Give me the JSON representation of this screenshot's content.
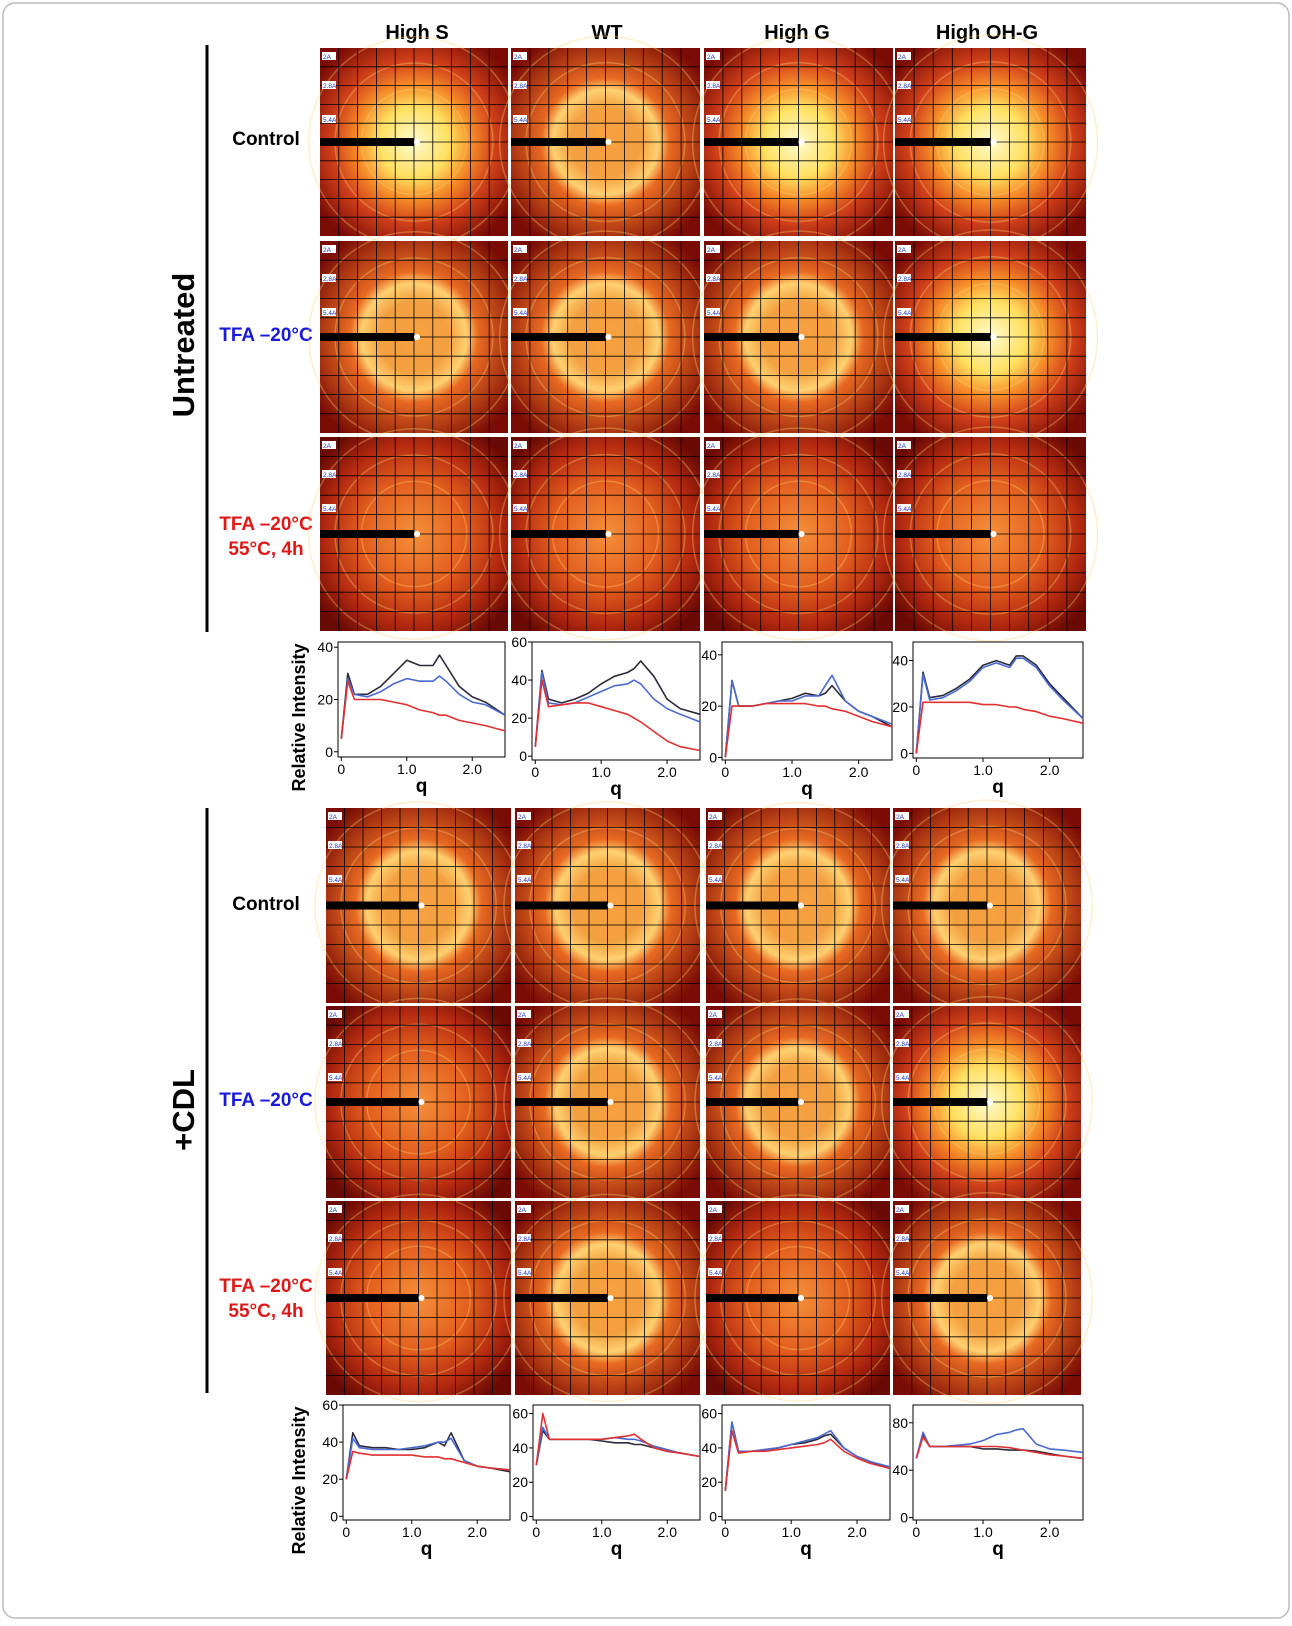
{
  "column_headers": [
    "High S",
    "WT",
    "High G",
    "High OH-G"
  ],
  "image_labels": [
    "2A",
    "2.8A",
    "5.4A"
  ],
  "groups": [
    {
      "label": "Untreated",
      "rows": [
        {
          "lines": [
            "Control"
          ],
          "color": "#000000"
        },
        {
          "lines": [
            "TFA –20°C"
          ],
          "color": "#1a1adc"
        },
        {
          "lines": [
            "TFA –20°C",
            "55°C, 4h"
          ],
          "color": "#e01818"
        }
      ]
    },
    {
      "label": "+CDL",
      "rows": [
        {
          "lines": [
            "Control"
          ],
          "color": "#000000"
        },
        {
          "lines": [
            "TFA –20°C"
          ],
          "color": "#1a1adc"
        },
        {
          "lines": [
            "TFA –20°C",
            "55°C, 4h"
          ],
          "color": "#e01818"
        }
      ]
    }
  ],
  "chart_data": [
    {
      "type": "line",
      "x_label": "q",
      "y_label": "Relative Intensity",
      "x": [
        0,
        0.1,
        0.2,
        0.4,
        0.6,
        0.8,
        1.0,
        1.2,
        1.4,
        1.5,
        1.6,
        1.8,
        2.0,
        2.2,
        2.5
      ],
      "xlim": [
        -0.05,
        2.5
      ],
      "xticks": [
        0,
        {
          "value": 1,
          "label": "1.0"
        },
        {
          "value": 2,
          "label": "2.0"
        }
      ],
      "ylim": [
        -2,
        42
      ],
      "yticks": [
        0,
        20,
        40
      ],
      "series": [
        {
          "color": "#2a2a3a",
          "values": [
            5,
            30,
            22,
            22,
            25,
            30,
            35,
            33,
            33,
            37,
            33,
            25,
            21,
            19,
            14
          ]
        },
        {
          "color": "#4a6ad0",
          "values": [
            5,
            28,
            22,
            21,
            23,
            26,
            28,
            27,
            27,
            29,
            27,
            22,
            19,
            18,
            14
          ]
        },
        {
          "color": "#e03030",
          "values": [
            5,
            27,
            20,
            20,
            20,
            19,
            18,
            16,
            15,
            14,
            14,
            12,
            11,
            10,
            8
          ]
        }
      ]
    },
    {
      "type": "line",
      "x_label": "q",
      "x": [
        0,
        0.1,
        0.2,
        0.4,
        0.6,
        0.8,
        1.0,
        1.2,
        1.4,
        1.5,
        1.6,
        1.8,
        2.0,
        2.2,
        2.5
      ],
      "xlim": [
        -0.05,
        2.5
      ],
      "xticks": [
        0,
        {
          "value": 1,
          "label": "1.0"
        },
        {
          "value": 2,
          "label": "2.0"
        }
      ],
      "ylim": [
        -2,
        60
      ],
      "yticks": [
        0,
        20,
        40,
        60
      ],
      "series": [
        {
          "color": "#2a2a3a",
          "values": [
            5,
            45,
            30,
            28,
            30,
            33,
            38,
            42,
            44,
            46,
            50,
            42,
            30,
            25,
            22
          ]
        },
        {
          "color": "#4a6ad0",
          "values": [
            5,
            44,
            28,
            27,
            28,
            31,
            34,
            37,
            38,
            40,
            38,
            30,
            25,
            22,
            18
          ]
        },
        {
          "color": "#e03030",
          "values": [
            5,
            40,
            26,
            27,
            28,
            28,
            26,
            24,
            22,
            20,
            18,
            13,
            8,
            5,
            3
          ]
        }
      ]
    },
    {
      "type": "line",
      "x_label": "q",
      "x": [
        0,
        0.1,
        0.2,
        0.4,
        0.6,
        0.8,
        1.0,
        1.2,
        1.4,
        1.5,
        1.6,
        1.8,
        2.0,
        2.2,
        2.5
      ],
      "xlim": [
        -0.05,
        2.5
      ],
      "xticks": [
        0,
        {
          "value": 1,
          "label": "1.0"
        },
        {
          "value": 2,
          "label": "2.0"
        }
      ],
      "ylim": [
        -1,
        45
      ],
      "yticks": [
        0,
        20,
        40
      ],
      "series": [
        {
          "color": "#2a2a3a",
          "values": [
            0,
            30,
            20,
            20,
            21,
            22,
            23,
            25,
            24,
            25,
            28,
            22,
            18,
            16,
            12
          ]
        },
        {
          "color": "#4a6ad0",
          "values": [
            0,
            30,
            20,
            20,
            21,
            22,
            22,
            24,
            24,
            28,
            32,
            22,
            18,
            16,
            13
          ]
        },
        {
          "color": "#e03030",
          "values": [
            0,
            20,
            20,
            20,
            21,
            21,
            21,
            21,
            20,
            20,
            19,
            18,
            16,
            14,
            12
          ]
        }
      ]
    },
    {
      "type": "line",
      "x_label": "q",
      "x": [
        0,
        0.1,
        0.2,
        0.4,
        0.6,
        0.8,
        1.0,
        1.2,
        1.4,
        1.5,
        1.6,
        1.8,
        2.0,
        2.2,
        2.5
      ],
      "xlim": [
        -0.05,
        2.5
      ],
      "xticks": [
        0,
        {
          "value": 1,
          "label": "1.0"
        },
        {
          "value": 2,
          "label": "2.0"
        }
      ],
      "ylim": [
        -2,
        48
      ],
      "yticks": [
        0,
        20,
        40
      ],
      "series": [
        {
          "color": "#2a2a3a",
          "values": [
            0,
            35,
            24,
            25,
            28,
            32,
            38,
            40,
            38,
            42,
            42,
            38,
            30,
            24,
            15
          ]
        },
        {
          "color": "#4a6ad0",
          "values": [
            0,
            34,
            23,
            24,
            27,
            31,
            37,
            39,
            37,
            41,
            41,
            37,
            29,
            23,
            15
          ]
        },
        {
          "color": "#e03030",
          "values": [
            0,
            22,
            22,
            22,
            22,
            22,
            21,
            21,
            20,
            20,
            19,
            18,
            16,
            15,
            13
          ]
        }
      ]
    },
    {
      "type": "line",
      "x_label": "q",
      "y_label": "Relative Intensity",
      "x": [
        0,
        0.1,
        0.2,
        0.4,
        0.6,
        0.8,
        1.0,
        1.2,
        1.4,
        1.5,
        1.6,
        1.8,
        2.0,
        2.2,
        2.5
      ],
      "xlim": [
        -0.05,
        2.5
      ],
      "xticks": [
        0,
        {
          "value": 1,
          "label": "1.0"
        },
        {
          "value": 2,
          "label": "2.0"
        }
      ],
      "ylim": [
        -2,
        60
      ],
      "yticks": [
        0,
        20,
        40,
        60
      ],
      "series": [
        {
          "color": "#2a2a3a",
          "values": [
            20,
            45,
            38,
            37,
            37,
            36,
            36,
            37,
            40,
            38,
            45,
            30,
            27,
            26,
            24
          ]
        },
        {
          "color": "#4a6ad0",
          "values": [
            20,
            42,
            37,
            36,
            36,
            36,
            37,
            38,
            40,
            40,
            42,
            30,
            27,
            26,
            25
          ]
        },
        {
          "color": "#e03030",
          "values": [
            20,
            35,
            34,
            33,
            33,
            33,
            33,
            32,
            32,
            31,
            31,
            29,
            27,
            26,
            25
          ]
        }
      ]
    },
    {
      "type": "line",
      "x_label": "q",
      "x": [
        0,
        0.1,
        0.2,
        0.4,
        0.6,
        0.8,
        1.0,
        1.2,
        1.4,
        1.5,
        1.6,
        1.8,
        2.0,
        2.2,
        2.5
      ],
      "xlim": [
        -0.05,
        2.5
      ],
      "xticks": [
        0,
        {
          "value": 1,
          "label": "1.0"
        },
        {
          "value": 2,
          "label": "2.0"
        }
      ],
      "ylim": [
        -2,
        65
      ],
      "yticks": [
        0,
        20,
        40,
        60
      ],
      "series": [
        {
          "color": "#2a2a3a",
          "values": [
            30,
            50,
            45,
            45,
            45,
            45,
            44,
            43,
            43,
            42,
            42,
            40,
            38,
            37,
            35
          ]
        },
        {
          "color": "#4a6ad0",
          "values": [
            30,
            52,
            45,
            45,
            45,
            45,
            45,
            46,
            45,
            45,
            44,
            41,
            39,
            37,
            35
          ]
        },
        {
          "color": "#e03030",
          "values": [
            30,
            60,
            45,
            45,
            45,
            45,
            45,
            46,
            47,
            48,
            45,
            40,
            38,
            37,
            35
          ]
        }
      ]
    },
    {
      "type": "line",
      "x_label": "q",
      "x": [
        0,
        0.1,
        0.2,
        0.4,
        0.6,
        0.8,
        1.0,
        1.2,
        1.4,
        1.5,
        1.6,
        1.8,
        2.0,
        2.2,
        2.5
      ],
      "xlim": [
        -0.05,
        2.5
      ],
      "xticks": [
        0,
        {
          "value": 1,
          "label": "1.0"
        },
        {
          "value": 2,
          "label": "2.0"
        }
      ],
      "ylim": [
        -2,
        65
      ],
      "yticks": [
        0,
        20,
        40,
        60
      ],
      "series": [
        {
          "color": "#2a2a3a",
          "values": [
            15,
            55,
            38,
            38,
            39,
            40,
            42,
            43,
            45,
            47,
            48,
            40,
            35,
            32,
            28
          ]
        },
        {
          "color": "#4a6ad0",
          "values": [
            15,
            55,
            38,
            38,
            39,
            40,
            42,
            44,
            46,
            48,
            50,
            40,
            35,
            32,
            29
          ]
        },
        {
          "color": "#e03030",
          "values": [
            15,
            50,
            37,
            38,
            38,
            39,
            40,
            41,
            42,
            43,
            45,
            38,
            34,
            31,
            28
          ]
        }
      ]
    },
    {
      "type": "line",
      "x_label": "q",
      "x": [
        0,
        0.1,
        0.2,
        0.4,
        0.6,
        0.8,
        1.0,
        1.2,
        1.4,
        1.5,
        1.6,
        1.8,
        2.0,
        2.2,
        2.5
      ],
      "xlim": [
        -0.05,
        2.5
      ],
      "xticks": [
        0,
        {
          "value": 1,
          "label": "1.0"
        },
        {
          "value": 2,
          "label": "2.0"
        }
      ],
      "ylim": [
        -2,
        95
      ],
      "yticks": [
        0,
        40,
        80
      ],
      "series": [
        {
          "color": "#2a2a3a",
          "values": [
            50,
            70,
            60,
            60,
            60,
            60,
            58,
            58,
            57,
            57,
            57,
            56,
            54,
            52,
            50
          ]
        },
        {
          "color": "#4a6ad0",
          "values": [
            50,
            72,
            60,
            60,
            61,
            62,
            65,
            70,
            72,
            74,
            75,
            62,
            58,
            57,
            55
          ]
        },
        {
          "color": "#e03030",
          "values": [
            50,
            68,
            60,
            60,
            60,
            60,
            60,
            60,
            59,
            58,
            57,
            55,
            53,
            52,
            50
          ]
        }
      ]
    }
  ]
}
